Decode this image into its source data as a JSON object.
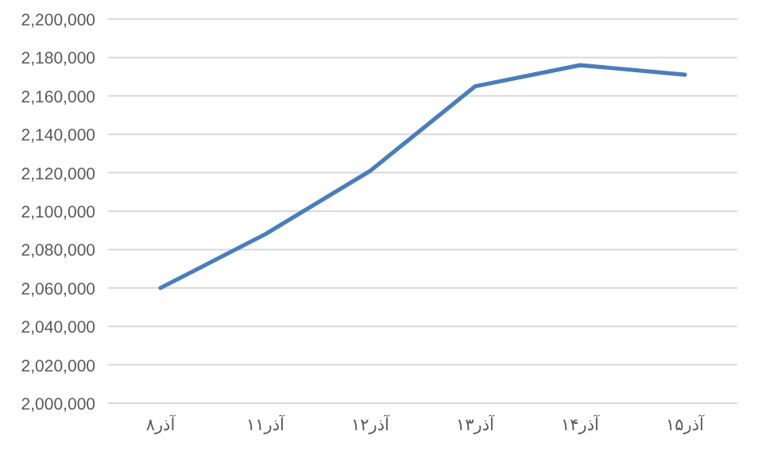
{
  "chart_data": {
    "type": "line",
    "categories": [
      "آذر۸",
      "آذر۱۱",
      "آذر۱۲",
      "آذر۱۳",
      "آذر۱۴",
      "آذر۱۵"
    ],
    "series": [
      {
        "color": "#4a7ebb",
        "values": [
          2060000,
          2088000,
          2121000,
          2165000,
          2176000,
          2171000
        ]
      }
    ],
    "ylim": [
      2000000,
      2200000
    ],
    "yticks": [
      {
        "value": 2000000,
        "label": "2,000,000"
      },
      {
        "value": 2020000,
        "label": "2,020,000"
      },
      {
        "value": 2040000,
        "label": "2,040,000"
      },
      {
        "value": 2060000,
        "label": "2,060,000"
      },
      {
        "value": 2080000,
        "label": "2,080,000"
      },
      {
        "value": 2100000,
        "label": "2,100,000"
      },
      {
        "value": 2120000,
        "label": "2,120,000"
      },
      {
        "value": 2140000,
        "label": "2,140,000"
      },
      {
        "value": 2160000,
        "label": "2,160,000"
      },
      {
        "value": 2180000,
        "label": "2,180,000"
      },
      {
        "value": 2200000,
        "label": "2,200,000"
      }
    ],
    "grid": "y",
    "marker": "none",
    "line_style": "solid"
  }
}
